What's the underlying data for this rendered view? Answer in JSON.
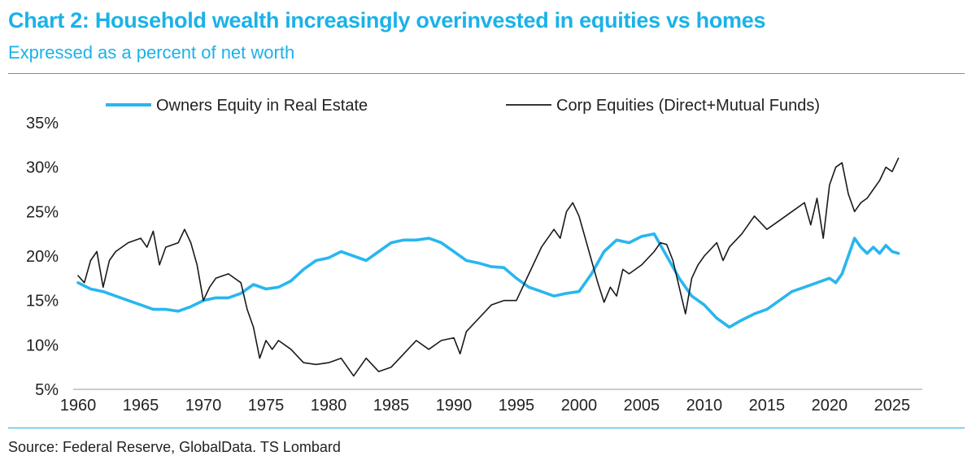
{
  "header": {
    "title": "Chart 2: Household wealth increasingly overinvested in equities vs homes",
    "subtitle": "Expressed as a percent of net worth"
  },
  "footer": {
    "source": "Source: Federal Reserve, GlobalData. TS Lombard"
  },
  "colors": {
    "accent": "#1ab2e8",
    "real_estate_line": "#29b6ef",
    "equities_line": "#1a1a1a"
  },
  "chart_data": {
    "type": "line",
    "title": "Household wealth increasingly overinvested in equities vs homes",
    "xlabel": "",
    "ylabel": "",
    "xlim": [
      1960,
      2026.5
    ],
    "ylim": [
      5,
      35
    ],
    "x_ticks": [
      1960,
      1965,
      1970,
      1975,
      1980,
      1985,
      1990,
      1995,
      2000,
      2005,
      2010,
      2015,
      2020,
      2025
    ],
    "x_tick_labels": [
      "1960",
      "1965",
      "1970",
      "1975",
      "1980",
      "1985",
      "1990",
      "1995",
      "2000",
      "2005",
      "2010",
      "2015",
      "2020",
      "2025"
    ],
    "y_ticks": [
      5,
      10,
      15,
      20,
      25,
      30,
      35
    ],
    "y_tick_labels": [
      "5%",
      "10%",
      "15%",
      "20%",
      "25%",
      "30%",
      "35%"
    ],
    "grid": false,
    "legend_position": "top",
    "series": [
      {
        "name": "Owners Equity in Real Estate",
        "color": "#29b6ef",
        "x": [
          1960,
          1961,
          1962,
          1963,
          1964,
          1965,
          1966,
          1967,
          1968,
          1969,
          1970,
          1971,
          1972,
          1973,
          1974,
          1975,
          1976,
          1977,
          1978,
          1979,
          1980,
          1981,
          1982,
          1983,
          1984,
          1985,
          1986,
          1987,
          1988,
          1989,
          1990,
          1991,
          1992,
          1993,
          1994,
          1995,
          1996,
          1997,
          1998,
          1999,
          2000,
          2001,
          2002,
          2003,
          2004,
          2005,
          2006,
          2007,
          2008,
          2009,
          2010,
          2011,
          2012,
          2013,
          2014,
          2015,
          2016,
          2017,
          2018,
          2019,
          2020,
          2020.5,
          2021,
          2022,
          2022.5,
          2023,
          2023.5,
          2024,
          2024.5,
          2025,
          2025.5
        ],
        "values": [
          17.0,
          16.3,
          16.0,
          15.5,
          15.0,
          14.5,
          14.0,
          14.0,
          13.8,
          14.3,
          15.0,
          15.3,
          15.3,
          15.8,
          16.8,
          16.3,
          16.5,
          17.2,
          18.5,
          19.5,
          19.8,
          20.5,
          20.0,
          19.5,
          20.5,
          21.5,
          21.8,
          21.8,
          22.0,
          21.5,
          20.5,
          19.5,
          19.2,
          18.8,
          18.7,
          17.5,
          16.5,
          16.0,
          15.5,
          15.8,
          16.0,
          18.0,
          20.5,
          21.8,
          21.5,
          22.2,
          22.5,
          20.0,
          17.5,
          15.5,
          14.5,
          13.0,
          12.0,
          12.8,
          13.5,
          14.0,
          15.0,
          16.0,
          16.5,
          17.0,
          17.5,
          17.0,
          18.0,
          22.0,
          21.0,
          20.3,
          21.0,
          20.3,
          21.2,
          20.5,
          20.3
        ]
      },
      {
        "name": "Corp Equities (Direct+Mutual Funds)",
        "color": "#1a1a1a",
        "x": [
          1960,
          1960.5,
          1961,
          1961.5,
          1962,
          1962.5,
          1963,
          1964,
          1965,
          1965.5,
          1966,
          1966.5,
          1967,
          1968,
          1968.5,
          1969,
          1969.5,
          1970,
          1970.5,
          1971,
          1972,
          1973,
          1973.5,
          1974,
          1974.5,
          1975,
          1975.5,
          1976,
          1977,
          1978,
          1979,
          1980,
          1981,
          1982,
          1983,
          1984,
          1985,
          1986,
          1987,
          1988,
          1989,
          1990,
          1990.5,
          1991,
          1992,
          1993,
          1994,
          1995,
          1996,
          1997,
          1998,
          1998.5,
          1999,
          1999.5,
          2000,
          2000.5,
          2001,
          2001.5,
          2002,
          2002.5,
          2003,
          2003.5,
          2004,
          2005,
          2006,
          2006.5,
          2007,
          2007.5,
          2008,
          2008.5,
          2009,
          2009.5,
          2010,
          2011,
          2011.5,
          2012,
          2013,
          2014,
          2015,
          2016,
          2017,
          2018,
          2018.5,
          2019,
          2019.5,
          2020,
          2020.5,
          2021,
          2021.5,
          2022,
          2022.5,
          2023,
          2023.5,
          2024,
          2024.5,
          2025,
          2025.5
        ],
        "values": [
          17.8,
          17.0,
          19.5,
          20.5,
          16.5,
          19.5,
          20.5,
          21.5,
          22.0,
          21.0,
          22.8,
          19.0,
          21.0,
          21.5,
          23.0,
          21.5,
          19.0,
          15.0,
          16.5,
          17.5,
          18.0,
          17.0,
          14.0,
          12.0,
          8.5,
          10.5,
          9.5,
          10.5,
          9.5,
          8.0,
          7.8,
          8.0,
          8.5,
          6.5,
          8.5,
          7.0,
          7.5,
          9.0,
          10.5,
          9.5,
          10.5,
          10.8,
          9.0,
          11.5,
          13.0,
          14.5,
          15.0,
          15.0,
          18.0,
          21.0,
          23.0,
          22.0,
          25.0,
          26.0,
          24.5,
          22.0,
          19.5,
          17.0,
          14.8,
          16.5,
          15.5,
          18.5,
          18.0,
          19.0,
          20.5,
          21.5,
          21.3,
          19.5,
          16.5,
          13.5,
          17.5,
          19.0,
          20.0,
          21.5,
          19.5,
          21.0,
          22.5,
          24.5,
          23.0,
          24.0,
          25.0,
          26.0,
          23.5,
          26.5,
          22.0,
          28.0,
          30.0,
          30.5,
          27.0,
          25.0,
          26.0,
          26.5,
          27.5,
          28.5,
          30.0,
          29.5,
          31.0
        ]
      }
    ]
  }
}
